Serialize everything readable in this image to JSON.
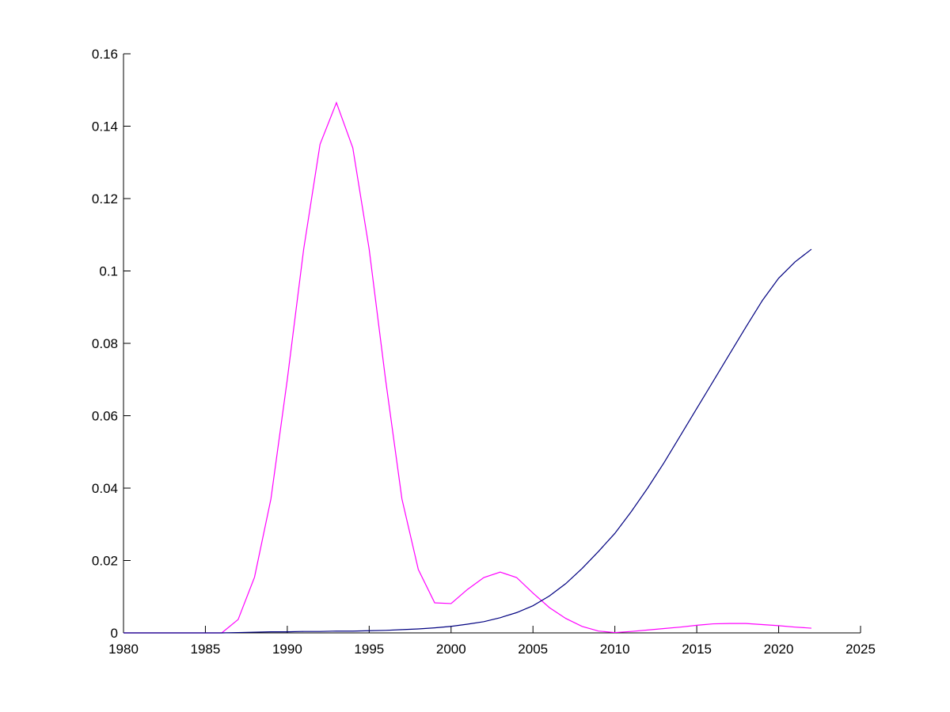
{
  "chart_data": {
    "type": "line",
    "x": [
      1980,
      1981,
      1982,
      1983,
      1984,
      1985,
      1986,
      1987,
      1988,
      1989,
      1990,
      1991,
      1992,
      1993,
      1994,
      1995,
      1996,
      1997,
      1998,
      1999,
      2000,
      2001,
      2002,
      2003,
      2004,
      2005,
      2006,
      2007,
      2008,
      2009,
      2010,
      2011,
      2012,
      2013,
      2014,
      2015,
      2016,
      2017,
      2018,
      2019,
      2020,
      2021,
      2022
    ],
    "series": [
      {
        "color": "#ff00ff",
        "values": [
          0,
          0,
          0,
          0,
          0,
          0,
          0,
          0.0037,
          0.0154,
          0.037,
          0.07,
          0.106,
          0.135,
          0.1465,
          0.134,
          0.106,
          0.07,
          0.037,
          0.0175,
          0.0083,
          0.0081,
          0.012,
          0.0153,
          0.0168,
          0.0153,
          0.011,
          0.007,
          0.004,
          0.0018,
          0.0005,
          0.0001,
          0.0004,
          0.0008,
          0.0012,
          0.0016,
          0.0021,
          0.0025,
          0.0026,
          0.0026,
          0.0023,
          0.002,
          0.0016,
          0.0013
        ]
      },
      {
        "color": "#000080",
        "values": [
          0,
          0,
          0,
          0,
          0,
          0,
          0,
          0.0001,
          0.0002,
          0.0003,
          0.0003,
          0.0004,
          0.0004,
          0.0005,
          0.0005,
          0.0006,
          0.0007,
          0.0009,
          0.0011,
          0.0014,
          0.0018,
          0.0024,
          0.0031,
          0.0042,
          0.0056,
          0.0075,
          0.0102,
          0.0136,
          0.0178,
          0.0225,
          0.0275,
          0.0335,
          0.04,
          0.047,
          0.0545,
          0.062,
          0.0695,
          0.077,
          0.0845,
          0.0918,
          0.098,
          0.1025,
          0.106
        ]
      }
    ],
    "xlim": [
      1980,
      2025
    ],
    "xticks": [
      1980,
      1985,
      1990,
      1995,
      2000,
      2005,
      2010,
      2015,
      2020,
      2025
    ],
    "ylim": [
      0,
      0.16
    ],
    "yticks": [
      0,
      0.02,
      0.04,
      0.06,
      0.08,
      0.1,
      0.12,
      0.14,
      0.16
    ]
  }
}
